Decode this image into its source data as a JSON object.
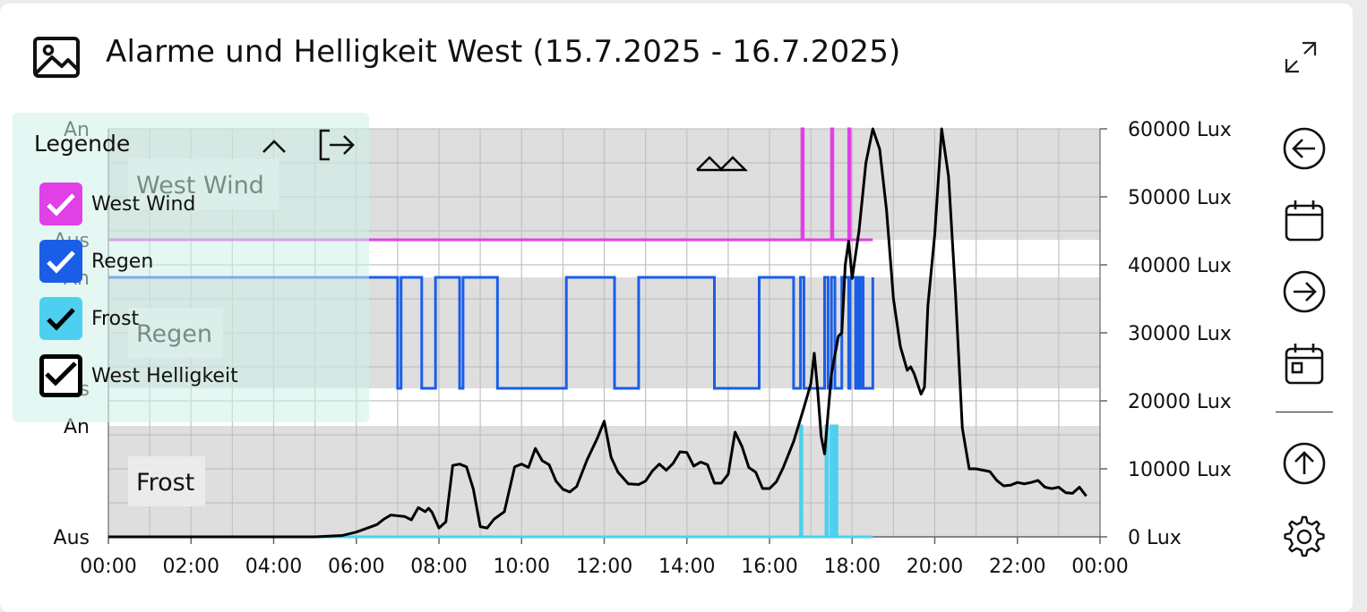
{
  "header": {
    "title": "Alarme und Helligkeit West (15.7.2025 - 16.7.2025)"
  },
  "legend": {
    "title": "Legende",
    "items": [
      {
        "label": "West Wind",
        "color": "#e040e6",
        "checked": true
      },
      {
        "label": "Regen",
        "color": "#1a5ee8",
        "checked": true
      },
      {
        "label": "Frost",
        "color": "#4dd0f0",
        "checked": true
      },
      {
        "label": "West Helligkeit",
        "color": "#000000",
        "checked": true
      }
    ]
  },
  "sidebar": [
    "arrow-left-icon",
    "calendar-icon",
    "arrow-right-icon",
    "calendar-day-icon",
    "arrow-up-icon",
    "gear-icon"
  ],
  "chart_data": {
    "type": "line",
    "x_ticks": [
      "00:00",
      "02:00",
      "04:00",
      "06:00",
      "08:00",
      "10:00",
      "12:00",
      "14:00",
      "16:00",
      "18:00",
      "20:00",
      "22:00",
      "00:00"
    ],
    "y_right_ticks": [
      "0 Lux",
      "10000 Lux",
      "20000 Lux",
      "30000 Lux",
      "40000 Lux",
      "50000 Lux",
      "60000 Lux"
    ],
    "y_right_range": [
      0,
      60000
    ],
    "grid": true,
    "lanes": [
      {
        "name": "West Wind",
        "on_label": "An",
        "off_label": "Aus",
        "color": "#e040e6"
      },
      {
        "name": "Regen",
        "on_label": "An",
        "off_label": "Aus",
        "color": "#1a5ee8"
      },
      {
        "name": "Frost",
        "on_label": "An",
        "off_label": "Aus",
        "color": "#4dd0f0"
      }
    ],
    "series": [
      {
        "name": "West Wind",
        "kind": "binary",
        "color": "#e040e6",
        "on_intervals": [
          [
            "16:47",
            "16:49"
          ],
          [
            "17:30",
            "17:32"
          ],
          [
            "17:55",
            "17:57"
          ]
        ]
      },
      {
        "name": "Regen",
        "kind": "binary",
        "color": "#1a5ee8",
        "off_intervals": [
          [
            "07:00",
            "07:05"
          ],
          [
            "07:35",
            "07:55"
          ],
          [
            "08:30",
            "08:35"
          ],
          [
            "09:25",
            "11:05"
          ],
          [
            "12:15",
            "12:50"
          ],
          [
            "14:40",
            "15:45"
          ],
          [
            "16:35",
            "16:45"
          ],
          [
            "16:50",
            "17:20"
          ],
          [
            "17:25",
            "17:30"
          ],
          [
            "17:35",
            "17:45"
          ],
          [
            "17:55",
            "17:57"
          ],
          [
            "18:05",
            "18:07"
          ],
          [
            "18:10",
            "18:12"
          ],
          [
            "18:16",
            "18:30"
          ]
        ]
      },
      {
        "name": "Frost",
        "kind": "binary",
        "color": "#4dd0f0",
        "on_intervals": [
          [
            "16:45",
            "16:47"
          ],
          [
            "17:22",
            "17:24"
          ],
          [
            "17:29",
            "17:33"
          ],
          [
            "17:35",
            "17:38"
          ]
        ]
      },
      {
        "name": "West Helligkeit",
        "kind": "lux",
        "color": "#000000",
        "points": [
          [
            "00:00",
            0
          ],
          [
            "05:00",
            0
          ],
          [
            "05:40",
            200
          ],
          [
            "06:00",
            700
          ],
          [
            "06:30",
            1800
          ],
          [
            "06:40",
            2600
          ],
          [
            "06:50",
            3200
          ],
          [
            "07:00",
            3100
          ],
          [
            "07:10",
            3000
          ],
          [
            "07:20",
            2500
          ],
          [
            "07:30",
            4300
          ],
          [
            "07:40",
            3700
          ],
          [
            "07:45",
            4200
          ],
          [
            "07:50",
            3600
          ],
          [
            "08:00",
            1300
          ],
          [
            "08:10",
            2200
          ],
          [
            "08:20",
            10500
          ],
          [
            "08:30",
            10700
          ],
          [
            "08:40",
            10300
          ],
          [
            "08:50",
            7000
          ],
          [
            "09:00",
            1500
          ],
          [
            "09:10",
            1300
          ],
          [
            "09:20",
            2600
          ],
          [
            "09:35",
            3700
          ],
          [
            "09:50",
            10300
          ],
          [
            "10:00",
            10700
          ],
          [
            "10:10",
            10200
          ],
          [
            "10:20",
            13000
          ],
          [
            "10:30",
            11200
          ],
          [
            "10:40",
            10600
          ],
          [
            "10:50",
            8200
          ],
          [
            "11:00",
            7000
          ],
          [
            "11:10",
            6600
          ],
          [
            "11:20",
            7400
          ],
          [
            "11:35",
            11300
          ],
          [
            "11:50",
            14500
          ],
          [
            "12:00",
            17000
          ],
          [
            "12:10",
            11700
          ],
          [
            "12:20",
            9500
          ],
          [
            "12:35",
            7800
          ],
          [
            "12:50",
            7700
          ],
          [
            "13:00",
            8200
          ],
          [
            "13:10",
            9700
          ],
          [
            "13:20",
            10700
          ],
          [
            "13:30",
            9800
          ],
          [
            "13:40",
            10800
          ],
          [
            "13:50",
            12500
          ],
          [
            "14:00",
            12400
          ],
          [
            "14:10",
            10400
          ],
          [
            "14:20",
            11000
          ],
          [
            "14:30",
            10600
          ],
          [
            "14:40",
            7900
          ],
          [
            "14:50",
            7900
          ],
          [
            "15:00",
            9200
          ],
          [
            "15:10",
            15400
          ],
          [
            "15:20",
            13300
          ],
          [
            "15:30",
            10200
          ],
          [
            "15:40",
            9500
          ],
          [
            "15:50",
            7100
          ],
          [
            "16:00",
            7100
          ],
          [
            "16:10",
            8100
          ],
          [
            "16:20",
            10200
          ],
          [
            "16:35",
            14000
          ],
          [
            "16:50",
            19000
          ],
          [
            "17:00",
            22500
          ],
          [
            "17:05",
            27000
          ],
          [
            "17:10",
            21500
          ],
          [
            "17:15",
            14800
          ],
          [
            "17:20",
            12200
          ],
          [
            "17:30",
            24000
          ],
          [
            "17:40",
            29500
          ],
          [
            "17:45",
            30000
          ],
          [
            "17:50",
            40000
          ],
          [
            "17:55",
            43500
          ],
          [
            "18:00",
            38000
          ],
          [
            "18:10",
            45000
          ],
          [
            "18:20",
            55000
          ],
          [
            "18:30",
            60000
          ],
          [
            "18:40",
            57000
          ],
          [
            "18:50",
            48000
          ],
          [
            "19:00",
            35000
          ],
          [
            "19:10",
            28000
          ],
          [
            "19:20",
            24500
          ],
          [
            "19:25",
            25000
          ],
          [
            "19:30",
            24000
          ],
          [
            "19:40",
            21000
          ],
          [
            "19:45",
            22000
          ],
          [
            "19:50",
            34000
          ],
          [
            "20:00",
            44500
          ],
          [
            "20:10",
            60000
          ],
          [
            "20:20",
            53000
          ],
          [
            "20:30",
            36000
          ],
          [
            "20:40",
            16000
          ],
          [
            "20:50",
            10000
          ],
          [
            "21:00",
            10000
          ],
          [
            "21:10",
            9800
          ],
          [
            "21:20",
            9600
          ],
          [
            "21:30",
            8300
          ],
          [
            "21:40",
            7500
          ],
          [
            "21:50",
            7600
          ],
          [
            "22:00",
            8000
          ],
          [
            "22:10",
            7800
          ],
          [
            "22:20",
            8000
          ],
          [
            "22:30",
            8300
          ],
          [
            "22:40",
            7300
          ],
          [
            "22:50",
            7100
          ],
          [
            "23:00",
            7300
          ],
          [
            "23:10",
            6500
          ],
          [
            "23:20",
            6400
          ],
          [
            "23:30",
            7300
          ],
          [
            "23:40",
            6000
          ]
        ]
      }
    ]
  }
}
